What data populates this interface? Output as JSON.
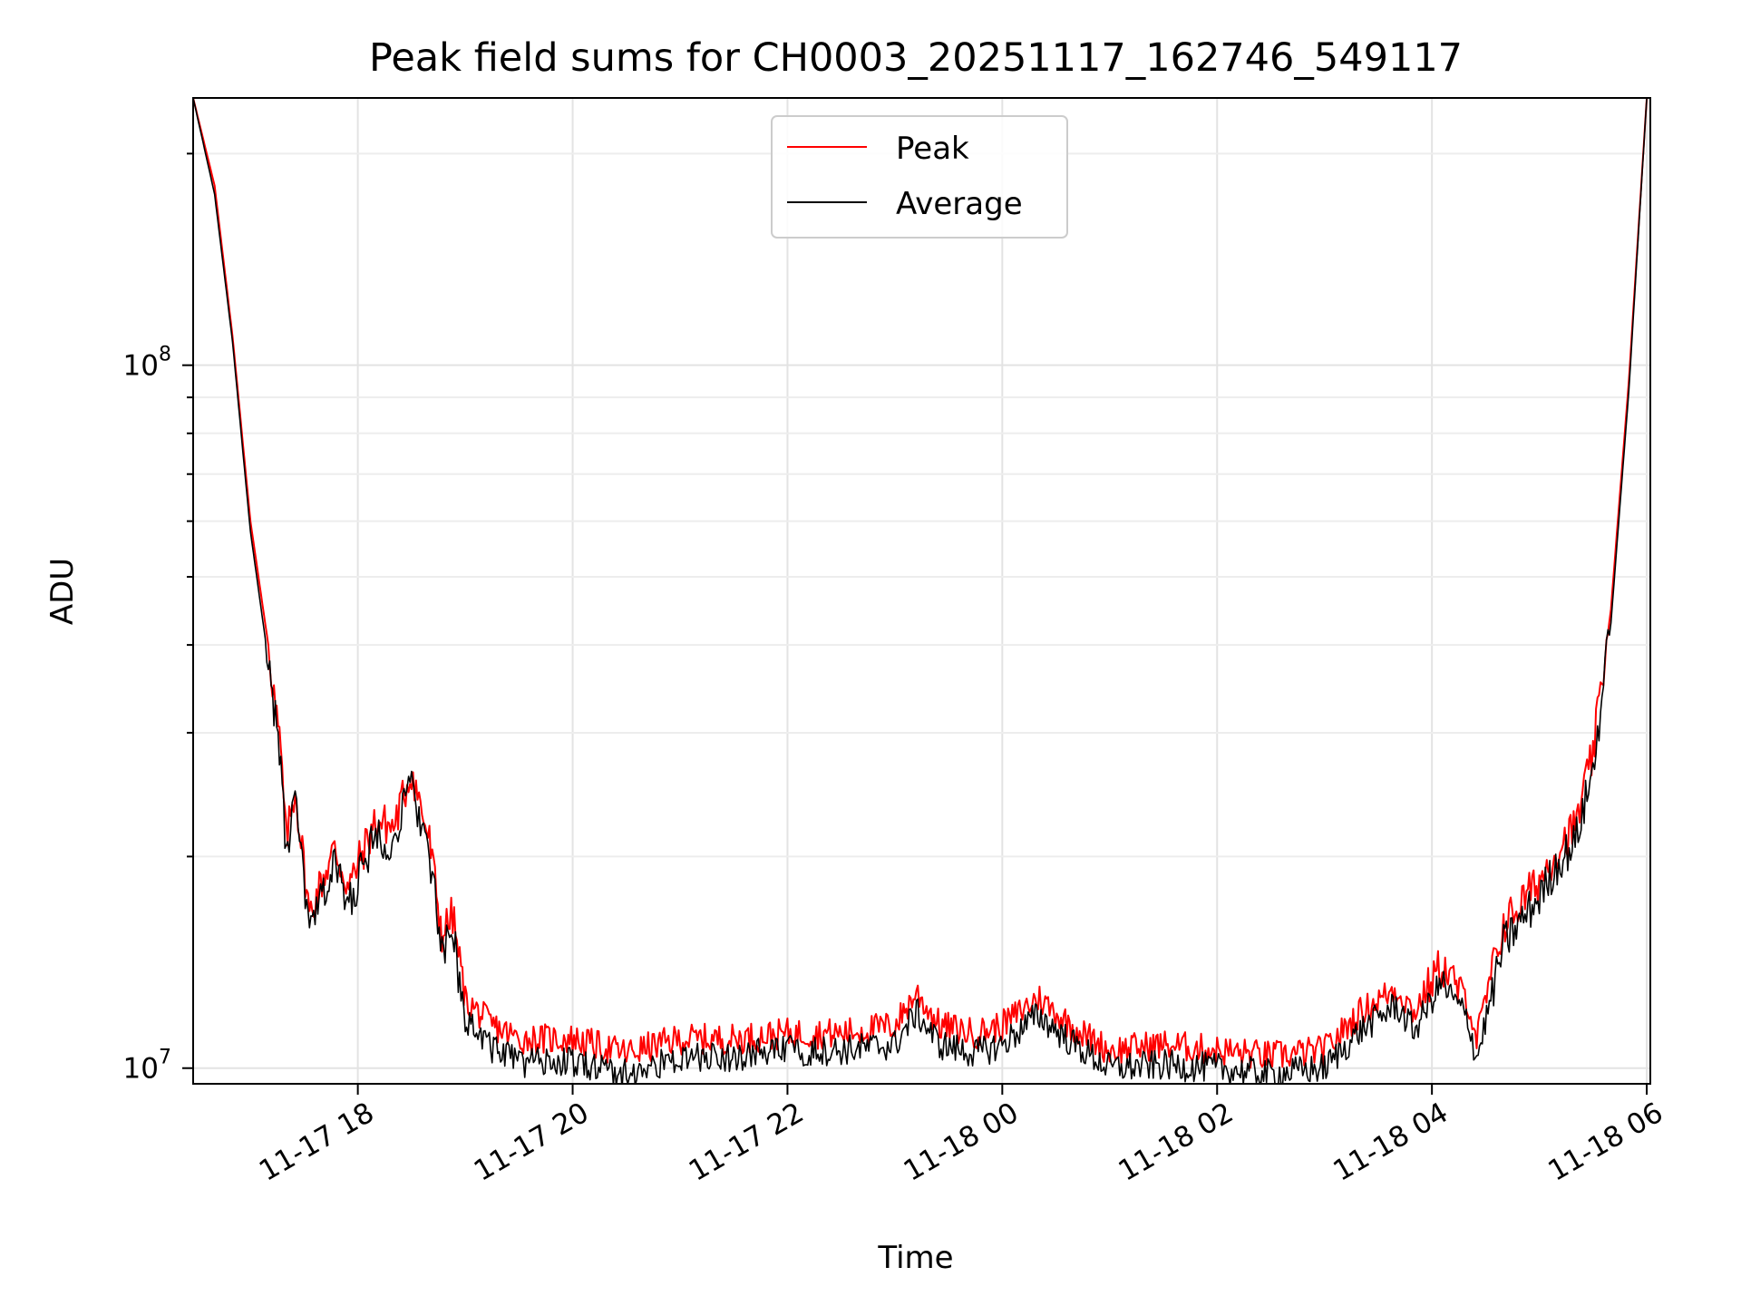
{
  "chart_data": {
    "type": "line",
    "title": "Peak field sums for CH0003_20251117_162746_549117",
    "xlabel": "Time",
    "ylabel": "ADU",
    "yscale": "log",
    "xlim": [
      "2025-11-17 16:28",
      "2025-11-18 06:02"
    ],
    "ylim": [
      9500000,
      240000000
    ],
    "x_ticks": [
      "11-17 18",
      "11-17 20",
      "11-17 22",
      "11-18 00",
      "11-18 02",
      "11-18 04",
      "11-18 06"
    ],
    "y_ticks": [
      {
        "base": "10",
        "exp": "7"
      },
      {
        "base": "10",
        "exp": "8"
      }
    ],
    "grid": true,
    "legend": "upper center",
    "series": [
      {
        "name": "Peak",
        "color": "#ff0000",
        "x": [
          "2025-11-17 16:28",
          "2025-11-17 16:40",
          "2025-11-17 16:50",
          "2025-11-17 17:00",
          "2025-11-17 17:10",
          "2025-11-17 17:17",
          "2025-11-17 17:20",
          "2025-11-17 17:25",
          "2025-11-17 17:33",
          "2025-11-17 17:40",
          "2025-11-17 17:47",
          "2025-11-17 17:55",
          "2025-11-17 18:00",
          "2025-11-17 18:10",
          "2025-11-17 18:20",
          "2025-11-17 18:30",
          "2025-11-17 18:40",
          "2025-11-17 18:47",
          "2025-11-17 18:53",
          "2025-11-17 19:00",
          "2025-11-17 19:15",
          "2025-11-17 19:30",
          "2025-11-17 20:00",
          "2025-11-17 20:30",
          "2025-11-17 21:00",
          "2025-11-17 21:30",
          "2025-11-17 22:00",
          "2025-11-17 22:30",
          "2025-11-17 23:00",
          "2025-11-17 23:12",
          "2025-11-17 23:25",
          "2025-11-17 23:45",
          "2025-11-18 00:00",
          "2025-11-18 00:20",
          "2025-11-18 00:40",
          "2025-11-18 01:00",
          "2025-11-18 01:30",
          "2025-11-18 02:00",
          "2025-11-18 02:30",
          "2025-11-18 03:00",
          "2025-11-18 03:20",
          "2025-11-18 03:40",
          "2025-11-18 03:50",
          "2025-11-18 04:05",
          "2025-11-18 04:20",
          "2025-11-18 04:25",
          "2025-11-18 04:40",
          "2025-11-18 05:00",
          "2025-11-18 05:10",
          "2025-11-18 05:20",
          "2025-11-18 05:30",
          "2025-11-18 05:40",
          "2025-11-18 05:50",
          "2025-11-18 06:00"
        ],
        "values": [
          240000000,
          180000000,
          110000000,
          60000000,
          40000000,
          28000000,
          21000000,
          25000000,
          16500000,
          18500000,
          20500000,
          18000000,
          19500000,
          22500000,
          22000000,
          26500000,
          21000000,
          15500000,
          16500000,
          12500000,
          11500000,
          11000000,
          11000000,
          10500000,
          11000000,
          11000000,
          11200000,
          11200000,
          11500000,
          12800000,
          11500000,
          11200000,
          11500000,
          12600000,
          11400000,
          10600000,
          10800000,
          10600000,
          10400000,
          10600000,
          12000000,
          13000000,
          12000000,
          14000000,
          12500000,
          11000000,
          16000000,
          18500000,
          20500000,
          22000000,
          28000000,
          45000000,
          95000000,
          240000000
        ]
      },
      {
        "name": "Average",
        "color": "#000000",
        "x": [
          "2025-11-17 16:28",
          "2025-11-17 16:40",
          "2025-11-17 16:50",
          "2025-11-17 17:00",
          "2025-11-17 17:10",
          "2025-11-17 17:17",
          "2025-11-17 17:20",
          "2025-11-17 17:25",
          "2025-11-17 17:33",
          "2025-11-17 17:40",
          "2025-11-17 17:47",
          "2025-11-17 17:55",
          "2025-11-17 18:00",
          "2025-11-17 18:10",
          "2025-11-17 18:20",
          "2025-11-17 18:30",
          "2025-11-17 18:40",
          "2025-11-17 18:47",
          "2025-11-17 18:53",
          "2025-11-17 19:00",
          "2025-11-17 19:15",
          "2025-11-17 19:30",
          "2025-11-17 20:00",
          "2025-11-17 20:30",
          "2025-11-17 21:00",
          "2025-11-17 21:30",
          "2025-11-17 22:00",
          "2025-11-17 22:30",
          "2025-11-17 23:00",
          "2025-11-17 23:12",
          "2025-11-17 23:25",
          "2025-11-17 23:45",
          "2025-11-18 00:00",
          "2025-11-18 00:20",
          "2025-11-18 00:40",
          "2025-11-18 01:00",
          "2025-11-18 01:30",
          "2025-11-18 02:00",
          "2025-11-18 02:30",
          "2025-11-18 03:00",
          "2025-11-18 03:20",
          "2025-11-18 03:40",
          "2025-11-18 03:50",
          "2025-11-18 04:05",
          "2025-11-18 04:20",
          "2025-11-18 04:25",
          "2025-11-18 04:40",
          "2025-11-18 05:00",
          "2025-11-18 05:10",
          "2025-11-18 05:20",
          "2025-11-18 05:30",
          "2025-11-18 05:40",
          "2025-11-18 05:50",
          "2025-11-18 06:00"
        ],
        "values": [
          240000000,
          175000000,
          108000000,
          58000000,
          38000000,
          27000000,
          20000000,
          24000000,
          15500000,
          17500000,
          19500000,
          17000000,
          18500000,
          21500000,
          21000000,
          25500000,
          20000000,
          14500000,
          15500000,
          11800000,
          10700000,
          10200000,
          10200000,
          9800000,
          10300000,
          10400000,
          10600000,
          10600000,
          10800000,
          12000000,
          10800000,
          10500000,
          10800000,
          11900000,
          10800000,
          10000000,
          10100000,
          10000000,
          9800000,
          10000000,
          11300000,
          12300000,
          11300000,
          13200000,
          11800000,
          10300000,
          15000000,
          17500000,
          19500000,
          21000000,
          26500000,
          43000000,
          92000000,
          240000000
        ]
      }
    ]
  }
}
